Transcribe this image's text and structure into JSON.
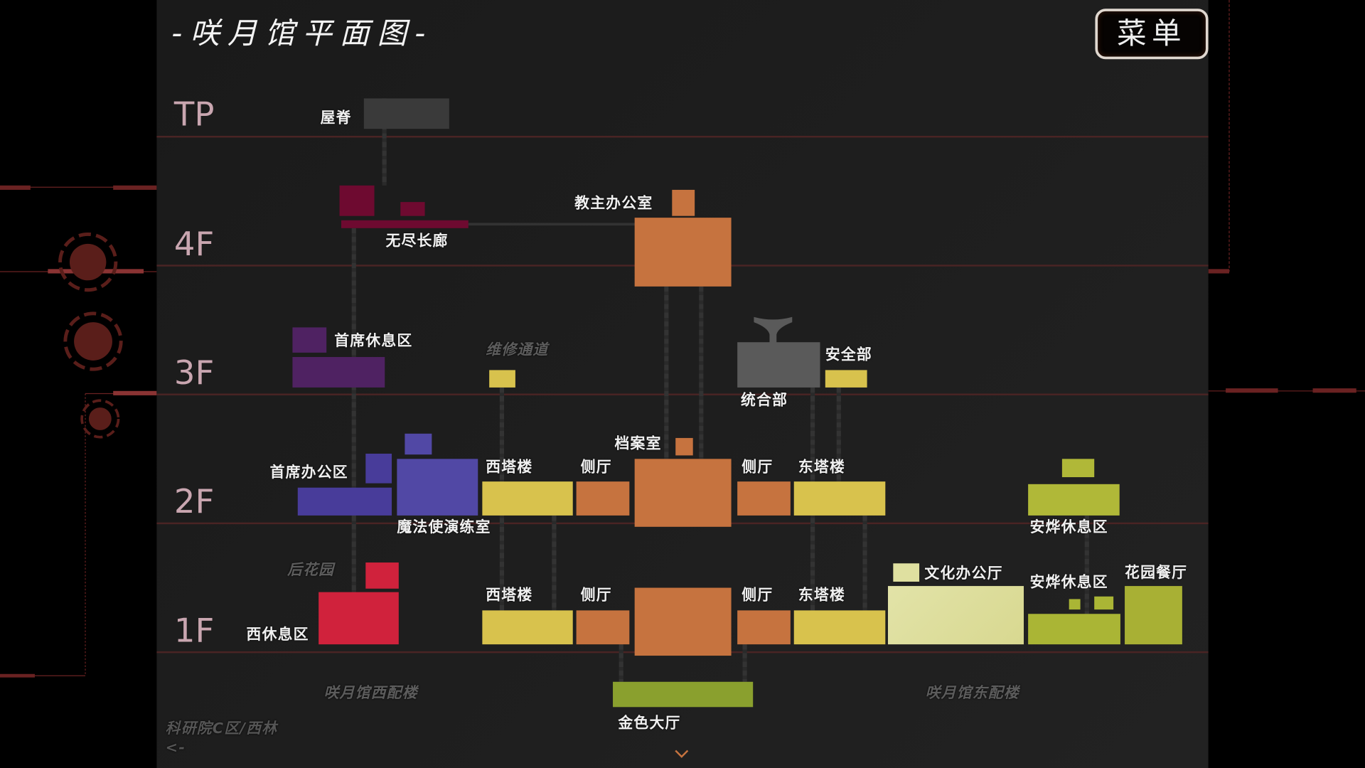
{
  "title": "-咲月馆平面图-",
  "menu_button": "菜单",
  "floors": [
    "TP",
    "4F",
    "3F",
    "2F",
    "1F"
  ],
  "rooms": {
    "roof_ridge": "屋脊",
    "endless_corridor": "无尽长廊",
    "bishop_office": "教主办公室",
    "chief_lounge": "首席休息区",
    "maintenance_passage": "维修通道",
    "integration_dept": "统合部",
    "security_dept": "安全部",
    "chief_office_area": "首席办公区",
    "mage_training_room": "魔法使演练室",
    "west_tower_2f": "西塔楼",
    "side_hall_w_2f": "侧厅",
    "archive_room": "档案室",
    "side_hall_e_2f": "侧厅",
    "east_tower_2f": "东塔楼",
    "anye_lounge_2f": "安烨休息区",
    "back_garden": "后花园",
    "west_lounge": "西休息区",
    "west_tower_1f": "西塔楼",
    "side_hall_w_1f": "侧厅",
    "side_hall_e_1f": "侧厅",
    "east_tower_1f": "东塔楼",
    "culture_office": "文化办公厅",
    "anye_lounge_1f": "安烨休息区",
    "garden_restaurant": "花园餐厅",
    "golden_hall": "金色大厅"
  },
  "wings": {
    "west": "咲月馆西配楼",
    "east": "咲月馆东配楼"
  },
  "exit": {
    "label": "科研院C区/西林",
    "arrow": "<-"
  },
  "colors": {
    "roof": "#3a3a3a",
    "floor4": "#6e0a30",
    "central": "#c6733f",
    "chief3f": "#4f2262",
    "yellow": "#d8c24d",
    "grey": "#5a5a5a",
    "chief2f": "#483c9a",
    "mage": "#5148a5",
    "anye": "#b0b838",
    "west_lounge": "#d0223c",
    "culture": "#dfe0a0",
    "golden": "#8aa02e",
    "floor_line": "#4a2424",
    "floor_label": "#c9a6b0"
  }
}
